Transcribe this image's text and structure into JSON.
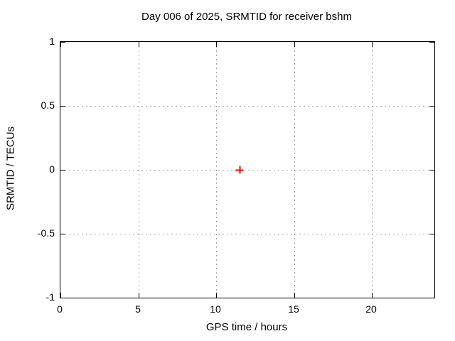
{
  "colors": {
    "background": "#ffffff",
    "text": "#000000",
    "plot_border": "#000000",
    "grid": "#a0a0a0",
    "marker": "#ff0000"
  },
  "chart_data": {
    "type": "scatter",
    "title": "Day 006 of 2025, SRMTID for receiver bshm",
    "xlabel": "GPS time / hours",
    "ylabel": "SRMTID / TECUs",
    "xlim": [
      0,
      24
    ],
    "ylim": [
      -1,
      1
    ],
    "xticks": [
      {
        "value": 0,
        "label": "0"
      },
      {
        "value": 5,
        "label": "5"
      },
      {
        "value": 10,
        "label": "10"
      },
      {
        "value": 15,
        "label": "15"
      },
      {
        "value": 20,
        "label": "20"
      }
    ],
    "yticks": [
      {
        "value": -1,
        "label": "-1"
      },
      {
        "value": -0.5,
        "label": "-0.5"
      },
      {
        "value": 0,
        "label": "0"
      },
      {
        "value": 0.5,
        "label": "0.5"
      },
      {
        "value": 1,
        "label": "1"
      }
    ],
    "grid": true,
    "legend_position": "none",
    "series": [
      {
        "name": "SRMTID",
        "marker": "plus",
        "color": "#ff0000",
        "points": [
          {
            "x": 11.5,
            "y": 0
          }
        ]
      }
    ]
  }
}
